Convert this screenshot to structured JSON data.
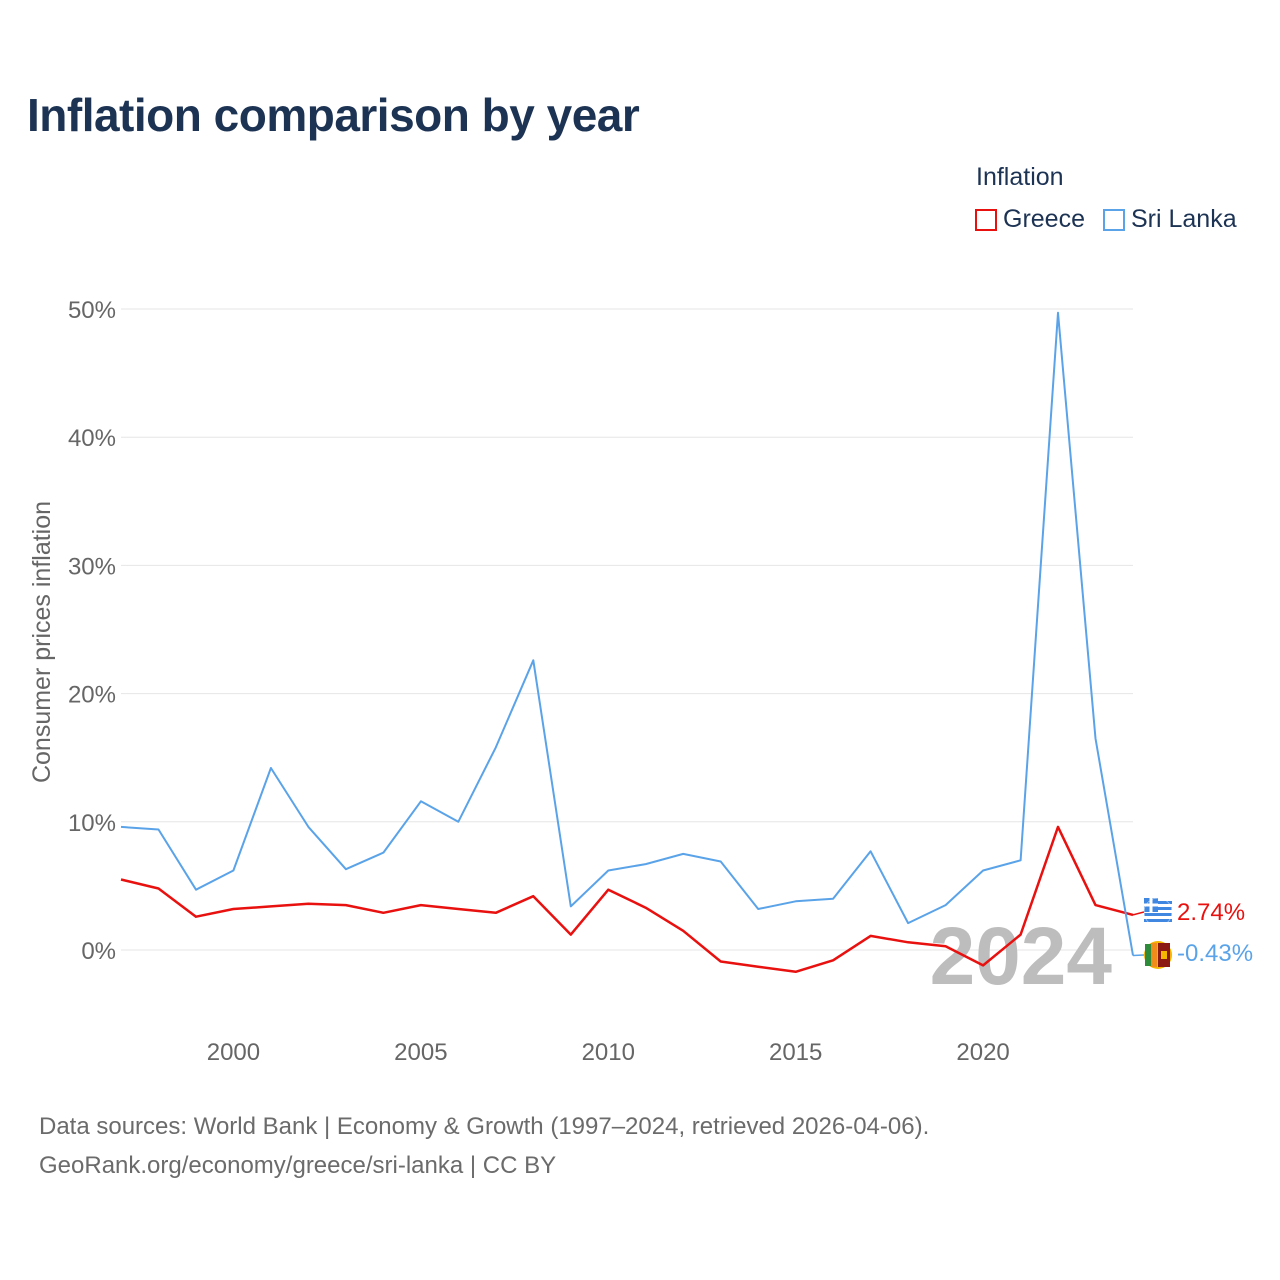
{
  "title": "Inflation comparison by year",
  "legend": {
    "title": "Inflation",
    "items": [
      {
        "label": "Greece",
        "color": "#e8110f"
      },
      {
        "label": "Sri Lanka",
        "color": "#5aa3e8"
      }
    ]
  },
  "chart_data": {
    "type": "line",
    "title": "Inflation comparison by year",
    "xlabel": "",
    "ylabel": "Consumer prices inflation",
    "xlim": [
      1997,
      2024
    ],
    "ylim": [
      -5,
      50
    ],
    "x_ticks": [
      2000,
      2005,
      2010,
      2015,
      2020
    ],
    "y_ticks": [
      0,
      10,
      20,
      30,
      40,
      50
    ],
    "y_tick_labels": [
      "0%",
      "10%",
      "20%",
      "30%",
      "40%",
      "50%"
    ],
    "grid": true,
    "legend_position": "top-right",
    "year_watermark": "2024",
    "x": [
      1997,
      1998,
      1999,
      2000,
      2001,
      2002,
      2003,
      2004,
      2005,
      2006,
      2007,
      2008,
      2009,
      2010,
      2011,
      2012,
      2013,
      2014,
      2015,
      2016,
      2017,
      2018,
      2019,
      2020,
      2021,
      2022,
      2023,
      2024
    ],
    "series": [
      {
        "name": "Greece",
        "color": "#e8110f",
        "end_label": "2.74%",
        "values": [
          5.5,
          4.8,
          2.6,
          3.2,
          3.4,
          3.6,
          3.5,
          2.9,
          3.5,
          3.2,
          2.9,
          4.2,
          1.2,
          4.7,
          3.3,
          1.5,
          -0.9,
          -1.3,
          -1.7,
          -0.8,
          1.1,
          0.6,
          0.3,
          -1.2,
          1.2,
          9.6,
          3.5,
          2.74
        ]
      },
      {
        "name": "Sri Lanka",
        "color": "#5aa3e8",
        "end_label": "-0.43%",
        "values": [
          9.6,
          9.4,
          4.7,
          6.2,
          14.2,
          9.6,
          6.3,
          7.6,
          11.6,
          10.0,
          15.8,
          22.6,
          3.4,
          6.2,
          6.7,
          7.5,
          6.9,
          3.2,
          3.8,
          4.0,
          7.7,
          2.1,
          3.5,
          6.2,
          7.0,
          49.7,
          16.5,
          -0.43
        ]
      }
    ]
  },
  "footer": {
    "line1": "Data sources: World Bank | Economy & Growth (1997–2024, retrieved 2026-04-06).",
    "line2": "GeoRank.org/economy/greece/sri-lanka | CC BY"
  }
}
